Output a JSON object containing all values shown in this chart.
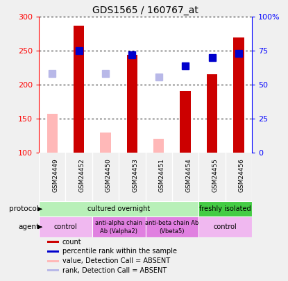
{
  "title": "GDS1565 / 160767_at",
  "samples": [
    "GSM24449",
    "GSM24452",
    "GSM24450",
    "GSM24453",
    "GSM24451",
    "GSM24454",
    "GSM24455",
    "GSM24456"
  ],
  "bar_values": [
    null,
    287,
    null,
    244,
    null,
    191,
    215,
    270
  ],
  "bar_absent_values": [
    157,
    null,
    130,
    null,
    120,
    null,
    null,
    null
  ],
  "rank_values": [
    null,
    250,
    null,
    244,
    null,
    228,
    240,
    246
  ],
  "rank_absent_values": [
    217,
    null,
    217,
    null,
    211,
    null,
    null,
    null
  ],
  "ylim": [
    100,
    300
  ],
  "yticks_left": [
    100,
    150,
    200,
    250,
    300
  ],
  "yticks_right": [
    0,
    25,
    50,
    75,
    100
  ],
  "ytick_labels_right": [
    "0",
    "25",
    "50",
    "75",
    "100%"
  ],
  "bar_color": "#cc0000",
  "bar_absent_color": "#ffb8b8",
  "rank_color": "#0000cc",
  "rank_absent_color": "#b8b8e8",
  "protocol_row": [
    {
      "label": "cultured overnight",
      "cols": [
        0,
        5
      ],
      "color": "#b8f0b8"
    },
    {
      "label": "freshly isolated",
      "cols": [
        6,
        7
      ],
      "color": "#44cc44"
    }
  ],
  "agent_row": [
    {
      "label": "control",
      "cols": [
        0,
        1
      ],
      "color": "#f0b8f0"
    },
    {
      "label": "anti-alpha chain\nAb (Valpha2)",
      "cols": [
        2,
        3
      ],
      "color": "#e080e0"
    },
    {
      "label": "anti-beta chain Ab\n(Vbeta5)",
      "cols": [
        4,
        5
      ],
      "color": "#e080e0"
    },
    {
      "label": "control",
      "cols": [
        6,
        7
      ],
      "color": "#f0b8f0"
    }
  ],
  "legend_items": [
    {
      "label": "count",
      "color": "#cc0000"
    },
    {
      "label": "percentile rank within the sample",
      "color": "#0000cc"
    },
    {
      "label": "value, Detection Call = ABSENT",
      "color": "#ffb8b8"
    },
    {
      "label": "rank, Detection Call = ABSENT",
      "color": "#b8b8e8"
    }
  ],
  "bar_width": 0.4,
  "rank_marker_size": 7
}
